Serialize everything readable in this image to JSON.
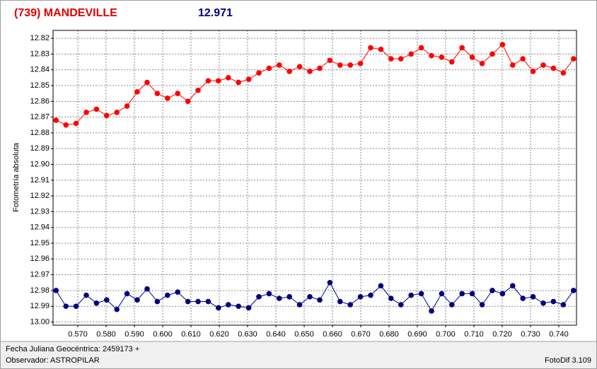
{
  "chart_data": {
    "type": "line",
    "title": "(739) MANDEVILLE",
    "subtitle": "12.971",
    "y_label": "Fotometría absoluta",
    "x_label": "Fecha Juliana Geocéntrica: 2459173 +",
    "observer": "Observador: ASTROPILAR",
    "software": "FotoDif 3.109",
    "grid": true,
    "x": [
      0.5623,
      0.5658,
      0.5694,
      0.573,
      0.5766,
      0.5802,
      0.5838,
      0.5874,
      0.591,
      0.5945,
      0.5981,
      0.6017,
      0.6053,
      0.6089,
      0.6125,
      0.6161,
      0.6197,
      0.6232,
      0.6268,
      0.6304,
      0.634,
      0.6376,
      0.6412,
      0.6448,
      0.6484,
      0.652,
      0.6555,
      0.6591,
      0.6627,
      0.6663,
      0.6699,
      0.6735,
      0.6771,
      0.6807,
      0.6842,
      0.6878,
      0.6914,
      0.695,
      0.6986,
      0.7022,
      0.7058,
      0.7094,
      0.7129,
      0.7165,
      0.7201,
      0.7237,
      0.7273,
      0.7309,
      0.7345,
      0.7381,
      0.7416,
      0.7452
    ],
    "series": [
      {
        "color": "#ff0000",
        "values": [
          12.872,
          12.875,
          12.874,
          12.867,
          12.865,
          12.869,
          12.867,
          12.863,
          12.854,
          12.848,
          12.855,
          12.858,
          12.855,
          12.86,
          12.853,
          12.847,
          12.847,
          12.845,
          12.848,
          12.846,
          12.842,
          12.839,
          12.837,
          12.841,
          12.838,
          12.841,
          12.839,
          12.834,
          12.837,
          12.837,
          12.836,
          12.826,
          12.827,
          12.833,
          12.833,
          12.83,
          12.826,
          12.831,
          12.832,
          12.835,
          12.826,
          12.832,
          12.836,
          12.83,
          12.824,
          12.837,
          12.833,
          12.841,
          12.837,
          12.839,
          12.842,
          12.833
        ]
      },
      {
        "color": "#000080",
        "values": [
          12.98,
          12.99,
          12.99,
          12.983,
          12.988,
          12.986,
          12.992,
          12.982,
          12.986,
          12.979,
          12.987,
          12.983,
          12.981,
          12.987,
          12.987,
          12.987,
          12.991,
          12.989,
          12.99,
          12.991,
          12.984,
          12.982,
          12.985,
          12.984,
          12.989,
          12.984,
          12.986,
          12.975,
          12.987,
          12.989,
          12.984,
          12.983,
          12.977,
          12.985,
          12.989,
          12.983,
          12.982,
          12.993,
          12.982,
          12.989,
          12.982,
          12.982,
          12.989,
          12.98,
          12.982,
          12.977,
          12.985,
          12.984,
          12.988,
          12.987,
          12.989,
          12.98
        ]
      }
    ],
    "xlim": [
      0.56125,
      0.74625
    ],
    "xticks": [
      {
        "value": 0.57,
        "label": "0.570"
      },
      {
        "value": 0.58,
        "label": "0.580"
      },
      {
        "value": 0.59,
        "label": "0.590"
      },
      {
        "value": 0.6,
        "label": "0.600"
      },
      {
        "value": 0.61,
        "label": "0.610"
      },
      {
        "value": 0.62,
        "label": "0.620"
      },
      {
        "value": 0.63,
        "label": "0.630"
      },
      {
        "value": 0.64,
        "label": "0.640"
      },
      {
        "value": 0.65,
        "label": "0.650"
      },
      {
        "value": 0.66,
        "label": "0.660"
      },
      {
        "value": 0.67,
        "label": "0.670"
      },
      {
        "value": 0.68,
        "label": "0.680"
      },
      {
        "value": 0.69,
        "label": "0.690"
      },
      {
        "value": 0.7,
        "label": "0.700"
      },
      {
        "value": 0.71,
        "label": "0.710"
      },
      {
        "value": 0.72,
        "label": "0.720"
      },
      {
        "value": 0.73,
        "label": "0.730"
      },
      {
        "value": 0.74,
        "label": "0.740"
      }
    ],
    "ylim": [
      13.002,
      12.815
    ],
    "yticks": [
      12.82,
      12.83,
      12.84,
      12.85,
      12.86,
      12.87,
      12.88,
      12.89,
      {
        "value": 12.9,
        "label": "12.90"
      },
      12.91,
      12.92,
      12.93,
      12.94,
      12.95,
      12.96,
      12.97,
      12.98,
      12.99,
      {
        "value": 13.0,
        "label": "13.00"
      }
    ]
  }
}
